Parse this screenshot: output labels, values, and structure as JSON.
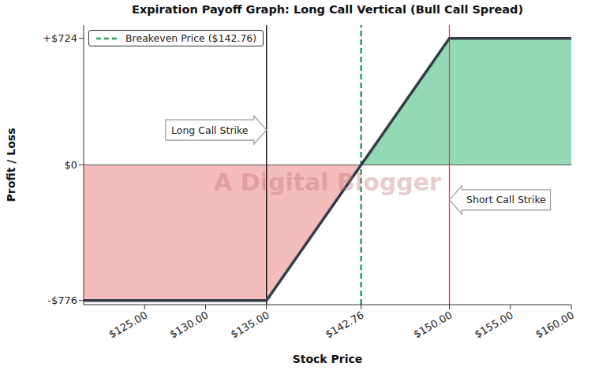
{
  "chart_data": {
    "type": "line",
    "title": "Expiration Payoff Graph: Long Call Vertical (Bull Call Spread)",
    "x_label": "Stock Price",
    "y_label": "Profit / Loss",
    "x": [
      120,
      135,
      142.76,
      150,
      160
    ],
    "values": [
      -776,
      -776,
      0,
      724,
      724
    ],
    "color": "#363d48",
    "loss_color": "#f4bcbc",
    "profit_color": "#93d9b6",
    "baseline": 0,
    "xlim": [
      120,
      160
    ],
    "ylim": [
      -800,
      800
    ],
    "xticks": [
      {
        "value": 125,
        "label": "$125.00"
      },
      {
        "value": 130,
        "label": "$130.00"
      },
      {
        "value": 135,
        "label": "$135.00"
      },
      {
        "value": 142.76,
        "label": "$142.76"
      },
      {
        "value": 150,
        "label": "$150.00"
      },
      {
        "value": 155,
        "label": "$155.00"
      },
      {
        "value": 160,
        "label": "$160.00"
      }
    ],
    "yticks": [
      {
        "value": -776,
        "label": "-$776"
      },
      {
        "value": 0,
        "label": "$0"
      },
      {
        "value": 724,
        "label": "+$724"
      }
    ],
    "reference_lines": [
      {
        "x": 135,
        "color": "#000000",
        "line_style": "solid"
      },
      {
        "x": 142.76,
        "name": "Breakeven Price ($142.76)",
        "color": "#2e9e6a",
        "line_style": "dashed"
      },
      {
        "x": 150,
        "color": "#e03c3c",
        "line_style": "solid"
      }
    ],
    "annotations": [
      {
        "text": "Long Call Strike",
        "x": 135,
        "y": 200,
        "side": "left"
      },
      {
        "text": "Short Call Strike",
        "x": 150,
        "y": -200,
        "side": "right"
      }
    ],
    "watermark": "A Digital Blogger",
    "legend": "upper left",
    "grid": false
  }
}
